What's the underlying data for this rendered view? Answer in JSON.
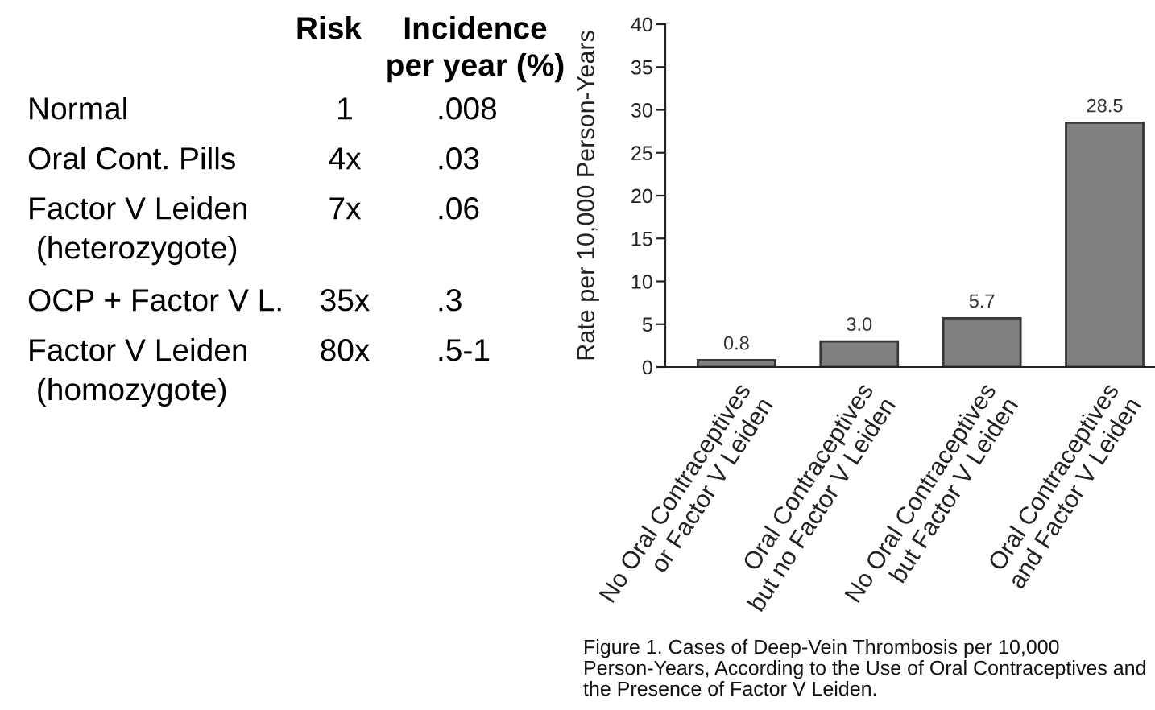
{
  "chart_data": [
    {
      "type": "other",
      "annotations": [
        "Risk",
        "Incidence\nper year (%)",
        "Normal",
        "1",
        ".008",
        "Oral Cont. Pills",
        "4x",
        ".03",
        "Factor V Leiden\n (heterozygote)",
        "7x",
        ".06",
        "OCP + Factor V L.",
        "35x",
        ".3",
        "Factor V Leiden\n (homozygote)",
        "80x",
        ".5-1"
      ]
    },
    {
      "type": "bar",
      "categories": [
        "No Oral Contraceptives\nor Factor V Leiden",
        "Oral Contraceptives\nbut no Factor V Leiden",
        "No Oral Contraceptives\nbut Factor V Leiden",
        "Oral Contraceptives\nand Factor V Leiden"
      ],
      "values": [
        0.8,
        3.0,
        5.7,
        28.5
      ],
      "value_labels": [
        "0.8",
        "3.0",
        "5.7",
        "28.5"
      ],
      "color": "#808080",
      "ylabel": "Rate per 10,000 Person-Years",
      "ylim": [
        0,
        40
      ],
      "yticks": [
        0,
        5,
        10,
        15,
        20,
        25,
        30,
        35,
        40
      ],
      "annotations": [
        "Figure 1. Cases of Deep-Vein Thrombosis per 10,000 Person-Years, According to the Use of Oral Contraceptives and the Presence of Factor V Leiden."
      ]
    }
  ]
}
